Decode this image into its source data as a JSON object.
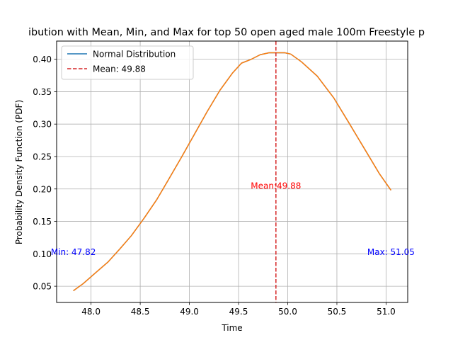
{
  "chart_data": {
    "type": "line",
    "title": "ibution with Mean, Min, and Max for top 50 open aged male 100m Freestyle p",
    "xlabel": "Time",
    "ylabel": "Probability Density Function (PDF)",
    "xlim": [
      47.65,
      51.22
    ],
    "ylim": [
      0.025,
      0.428
    ],
    "xticks": [
      48.0,
      48.5,
      49.0,
      49.5,
      50.0,
      50.5,
      51.0
    ],
    "xtick_labels": [
      "48.0",
      "48.5",
      "49.0",
      "49.5",
      "50.0",
      "50.5",
      "51.0"
    ],
    "yticks": [
      0.05,
      0.1,
      0.15,
      0.2,
      0.25,
      0.3,
      0.35,
      0.4
    ],
    "ytick_labels": [
      "0.05",
      "0.10",
      "0.15",
      "0.20",
      "0.25",
      "0.30",
      "0.35",
      "0.40"
    ],
    "grid": true,
    "legend_position": "top-left",
    "series": [
      {
        "name": "Normal Distribution",
        "color": "#1f77b4",
        "x": [
          47.82,
          47.92,
          48.04,
          48.17,
          48.29,
          48.41,
          48.54,
          48.67,
          48.79,
          48.92,
          49.05,
          49.18,
          49.31,
          49.44,
          49.53,
          49.63,
          49.72,
          49.81,
          49.88,
          49.97,
          50.03,
          50.14,
          50.3,
          50.47,
          50.63,
          50.8,
          50.93,
          51.05
        ],
        "y": [
          0.043,
          0.054,
          0.07,
          0.087,
          0.107,
          0.128,
          0.155,
          0.184,
          0.215,
          0.249,
          0.284,
          0.319,
          0.352,
          0.379,
          0.394,
          0.4,
          0.407,
          0.41,
          0.41,
          0.41,
          0.408,
          0.396,
          0.374,
          0.34,
          0.3,
          0.257,
          0.224,
          0.198
        ]
      },
      {
        "color": "#ff7f0e",
        "x": [
          47.82,
          47.92,
          48.04,
          48.17,
          48.29,
          48.41,
          48.54,
          48.67,
          48.79,
          48.92,
          49.05,
          49.18,
          49.31,
          49.44,
          49.53,
          49.63,
          49.72,
          49.81,
          49.88,
          49.97,
          50.03,
          50.14,
          50.3,
          50.47,
          50.63,
          50.8,
          50.93,
          51.05
        ],
        "y": [
          0.043,
          0.054,
          0.07,
          0.087,
          0.107,
          0.128,
          0.155,
          0.184,
          0.215,
          0.249,
          0.284,
          0.319,
          0.352,
          0.379,
          0.394,
          0.4,
          0.407,
          0.41,
          0.41,
          0.41,
          0.408,
          0.396,
          0.374,
          0.34,
          0.3,
          0.257,
          0.224,
          0.198
        ]
      }
    ],
    "mean_line": {
      "x": 49.88,
      "legend_label": "Mean: 49.88",
      "color": "#d62728"
    },
    "annotations": [
      {
        "text": "Mean:49.88",
        "x": 49.88,
        "y": 0.205,
        "color": "#ff0000",
        "align": "center"
      },
      {
        "text": "Min: 47.82",
        "x": 47.82,
        "y": 0.103,
        "color": "#0000ff",
        "align": "center"
      },
      {
        "text": "Max: 51.05",
        "x": 51.05,
        "y": 0.103,
        "color": "#0000ff",
        "align": "center"
      }
    ]
  }
}
